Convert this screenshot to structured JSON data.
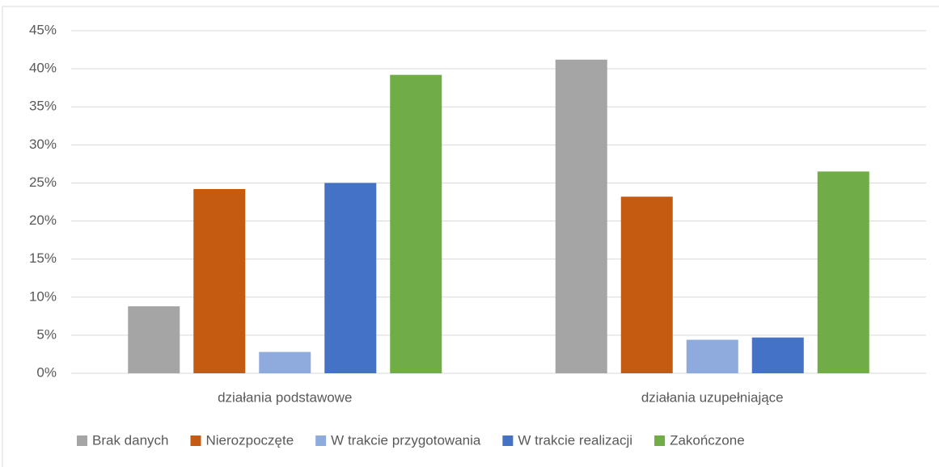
{
  "chart_data": {
    "type": "bar",
    "categories": [
      "działania podstawowe",
      "działania uzupełniające"
    ],
    "series": [
      {
        "name": "Brak danych",
        "color": "#a5a5a5",
        "values": [
          8.8,
          41.2
        ]
      },
      {
        "name": "Nierozpoczęte",
        "color": "#c55a11",
        "values": [
          24.2,
          23.2
        ]
      },
      {
        "name": "W trakcie przygotowania",
        "color": "#8faadc",
        "values": [
          2.8,
          4.4
        ]
      },
      {
        "name": "W trakcie realizacji",
        "color": "#4472c4",
        "values": [
          25.0,
          4.7
        ]
      },
      {
        "name": "Zakończone",
        "color": "#70ad47",
        "values": [
          39.2,
          26.5
        ]
      }
    ],
    "ylim": [
      0,
      45
    ],
    "yticks": [
      {
        "value": 0,
        "label": "0%"
      },
      {
        "value": 5,
        "label": "5%"
      },
      {
        "value": 10,
        "label": "10%"
      },
      {
        "value": 15,
        "label": "15%"
      },
      {
        "value": 20,
        "label": "20%"
      },
      {
        "value": 25,
        "label": "25%"
      },
      {
        "value": 30,
        "label": "30%"
      },
      {
        "value": 35,
        "label": "35%"
      },
      {
        "value": 40,
        "label": "40%"
      },
      {
        "value": 45,
        "label": "45%"
      }
    ],
    "grid": true,
    "legend": "bottom"
  }
}
